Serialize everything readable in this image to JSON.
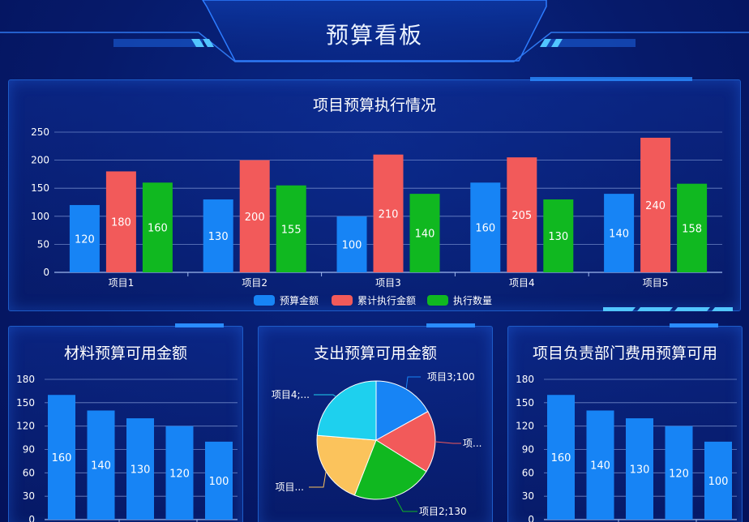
{
  "page": {
    "title": "预算看板"
  },
  "colors": {
    "budget": "#1784f5",
    "executed": "#f25a5a",
    "count": "#10b820",
    "pie": [
      "#1784f5",
      "#f25a5a",
      "#10b820",
      "#fbc35c",
      "#1ed0ee"
    ]
  },
  "chart_data": [
    {
      "type": "bar",
      "title": "项目预算执行情况",
      "categories": [
        "项目1",
        "项目2",
        "项目3",
        "项目4",
        "项目5"
      ],
      "series": [
        {
          "name": "预算金额",
          "values": [
            120,
            130,
            100,
            160,
            140
          ]
        },
        {
          "name": "累计执行金额",
          "values": [
            180,
            200,
            210,
            205,
            240
          ]
        },
        {
          "name": "执行数量",
          "values": [
            160,
            155,
            140,
            130,
            158
          ]
        }
      ],
      "ylim": [
        0,
        250
      ],
      "yticks": [
        0,
        50,
        100,
        150,
        200,
        250
      ],
      "legend": "bottom-center",
      "grid": true
    },
    {
      "type": "bar",
      "title": "材料预算可用金额",
      "values": [
        160,
        140,
        130,
        120,
        100
      ],
      "ylim": [
        0,
        180
      ],
      "yticks": [
        0,
        30,
        60,
        90,
        120,
        150,
        180
      ],
      "grid": true
    },
    {
      "type": "pie",
      "title": "支出预算可用金额",
      "labels": [
        "项目3;100",
        "项...",
        "项目2;130",
        "项目...",
        "项目4;..."
      ],
      "values": [
        100,
        100,
        130,
        120,
        140
      ]
    },
    {
      "type": "bar",
      "title": "项目负责部门费用预算可用",
      "values": [
        160,
        140,
        130,
        120,
        100
      ],
      "ylim": [
        0,
        180
      ],
      "yticks": [
        0,
        30,
        60,
        90,
        120,
        150,
        180
      ],
      "grid": true
    }
  ]
}
